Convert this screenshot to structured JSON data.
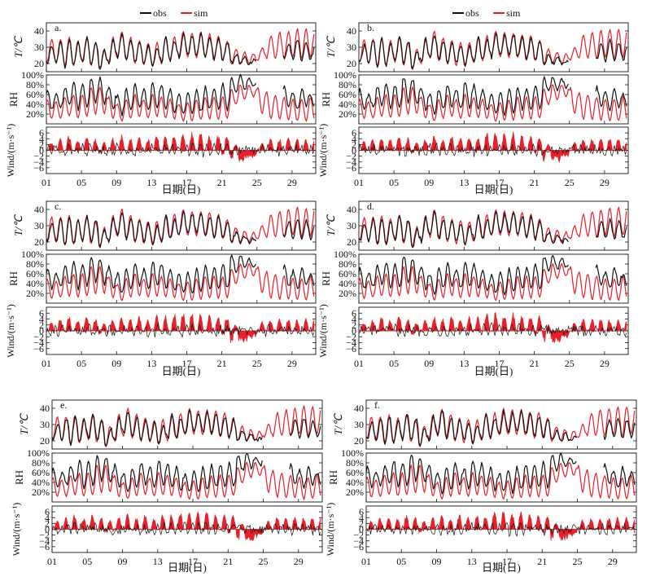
{
  "legend": {
    "obs": "obs",
    "sim": "sim"
  },
  "colors": {
    "obs": "#111111",
    "sim": "#e8202a",
    "axis": "#111111"
  },
  "chart_data": {
    "type": "line",
    "title": "",
    "xlabel": "日期(日)",
    "x_ticks": [
      "01",
      "05",
      "09",
      "13",
      "17",
      "21",
      "25",
      "29"
    ],
    "xlim": [
      1,
      31
    ],
    "panels_labels": [
      "a.",
      "b.",
      "c.",
      "d.",
      "e.",
      "f."
    ],
    "subplots": [
      {
        "key": "temp",
        "ylabel": "T/℃",
        "ylim": [
          15,
          45
        ],
        "y_ticks": [
          "20",
          "30",
          "40"
        ],
        "y_tick_values": [
          20,
          30,
          40
        ]
      },
      {
        "key": "rh",
        "ylabel": "RH",
        "ylim": [
          0,
          100
        ],
        "y_ticks": [
          "20%",
          "40%",
          "60%",
          "80%",
          "100%"
        ],
        "y_tick_values": [
          20,
          40,
          60,
          80,
          100
        ]
      },
      {
        "key": "wind",
        "ylabel": "Wind/(m·s⁻¹)",
        "ylim": [
          -8,
          8
        ],
        "y_ticks": [
          "−6",
          "−4",
          "−2",
          "0",
          "2",
          "4",
          "6"
        ],
        "y_tick_values": [
          -6,
          -4,
          -2,
          0,
          2,
          4,
          6
        ]
      }
    ],
    "series": [
      {
        "name": "obs",
        "description": "observed hourly values"
      },
      {
        "name": "sim",
        "description": "simulated hourly values"
      }
    ],
    "daily_approx": {
      "temp_max_obs": [
        31,
        34,
        35,
        33,
        36,
        34,
        28,
        35,
        38,
        34,
        33,
        31,
        30,
        36,
        34,
        38,
        37,
        38,
        36,
        35,
        33,
        26,
        24,
        22,
        null,
        null,
        null,
        33,
        34,
        33,
        32
      ],
      "temp_min_obs": [
        21,
        20,
        18,
        19,
        21,
        20,
        17,
        20,
        24,
        22,
        21,
        20,
        19,
        21,
        22,
        24,
        25,
        25,
        24,
        23,
        22,
        20,
        20,
        20,
        null,
        null,
        null,
        22,
        22,
        22,
        22
      ],
      "temp_max_sim": [
        35,
        35,
        36,
        34,
        36,
        33,
        29,
        36,
        40,
        36,
        34,
        33,
        33,
        36,
        37,
        40,
        39,
        39,
        38,
        37,
        34,
        29,
        27,
        26,
        30,
        37,
        39,
        40,
        41,
        41,
        40
      ],
      "temp_min_sim": [
        21,
        20,
        18,
        19,
        21,
        19,
        17,
        20,
        23,
        22,
        20,
        19,
        18,
        20,
        22,
        24,
        24,
        24,
        24,
        22,
        22,
        20,
        20,
        20,
        22,
        23,
        23,
        23,
        24,
        23,
        24
      ],
      "rh_max_obs": [
        70,
        60,
        75,
        85,
        80,
        95,
        92,
        75,
        60,
        70,
        80,
        70,
        85,
        80,
        70,
        60,
        65,
        70,
        75,
        75,
        80,
        95,
        98,
        90,
        null,
        null,
        null,
        75,
        65,
        70,
        60
      ],
      "rh_min_obs": [
        30,
        35,
        40,
        30,
        35,
        45,
        40,
        30,
        20,
        30,
        35,
        30,
        35,
        30,
        25,
        20,
        20,
        25,
        30,
        30,
        30,
        65,
        70,
        75,
        null,
        null,
        null,
        35,
        30,
        35,
        30
      ],
      "rh_max_sim": [
        50,
        45,
        55,
        60,
        60,
        75,
        75,
        55,
        40,
        50,
        60,
        50,
        60,
        55,
        50,
        40,
        45,
        50,
        55,
        55,
        55,
        70,
        80,
        80,
        75,
        65,
        60,
        55,
        50,
        50,
        55
      ],
      "rh_min_sim": [
        10,
        12,
        15,
        12,
        15,
        20,
        20,
        12,
        6,
        12,
        15,
        12,
        14,
        12,
        10,
        6,
        6,
        8,
        10,
        10,
        12,
        40,
        50,
        55,
        20,
        10,
        8,
        8,
        6,
        6,
        8
      ],
      "wind_max_sim": [
        3,
        4,
        5,
        4,
        5,
        4,
        3,
        4,
        5,
        4,
        5,
        4,
        5,
        5,
        6,
        6,
        6,
        6,
        5,
        5,
        5,
        2,
        0,
        0,
        3,
        4,
        4,
        4,
        4,
        4,
        4
      ],
      "wind_min_sim": [
        0,
        0,
        0,
        0,
        0,
        0,
        -1,
        0,
        0,
        0,
        0,
        0,
        0,
        0,
        0,
        0,
        0,
        0,
        0,
        0,
        -1,
        -3,
        -3,
        -2,
        0,
        0,
        0,
        0,
        0,
        0,
        0
      ]
    }
  }
}
